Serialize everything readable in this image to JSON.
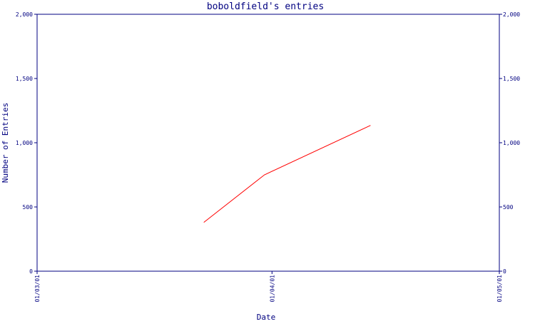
{
  "chart_data": {
    "type": "line",
    "title": "boboldfield's entries",
    "xlabel": "Date",
    "ylabel": "Number of Entries",
    "ylim": [
      0,
      2000
    ],
    "y_ticks": [
      {
        "value": 0,
        "label": "0"
      },
      {
        "value": 500,
        "label": "500"
      },
      {
        "value": 1000,
        "label": "1,000"
      },
      {
        "value": 1500,
        "label": "1,500"
      },
      {
        "value": 2000,
        "label": "2,000"
      }
    ],
    "x_range": [
      "2001-03-01",
      "2001-05-01"
    ],
    "x_ticks": [
      {
        "value": "2001-03-01",
        "label": "01/03/01"
      },
      {
        "value": "2001-04-01",
        "label": "01/04/01"
      },
      {
        "value": "2001-05-01",
        "label": "01/05/01"
      }
    ],
    "right_axis_mirror": true,
    "grid": false,
    "series": [
      {
        "color": "#ff0000",
        "points": [
          {
            "x": "2001-03-23",
            "y": 380
          },
          {
            "x": "2001-03-31",
            "y": 750
          },
          {
            "x": "2001-04-14",
            "y": 1135
          }
        ]
      }
    ]
  },
  "colors": {
    "axis": "#000080",
    "text": "#000080",
    "line": "#ff0000",
    "background": "#ffffff"
  }
}
